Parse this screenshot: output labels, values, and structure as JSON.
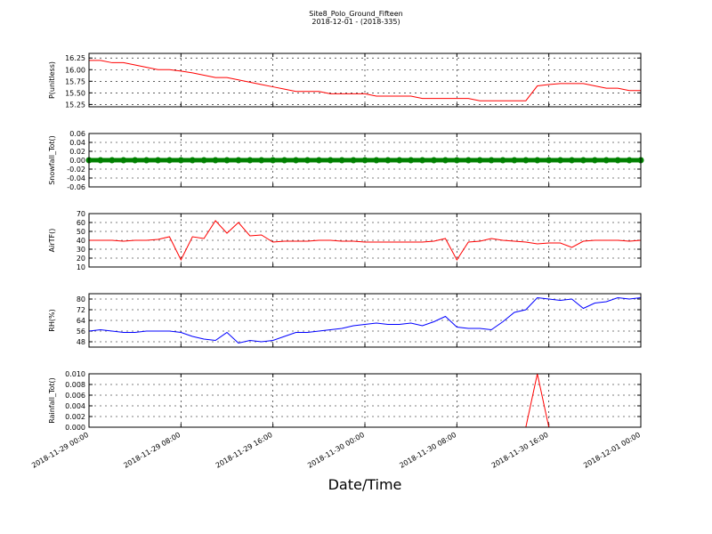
{
  "title": "Site8_Polo_Ground_Fifteen",
  "subtitle": "2018-12-01 - (2018-335)",
  "xlabel": "Date/Time",
  "chart_data": [
    {
      "type": "line",
      "ylabel": "P(unitless)",
      "color": "#ff0000",
      "grid": true,
      "xlim": [
        "2018-11-29 00:00",
        "2018-12-01 00:00"
      ],
      "xticks": [
        "2018-11-29 00:00",
        "2018-11-29 08:00",
        "2018-11-29 16:00",
        "2018-11-30 00:00",
        "2018-11-30 08:00",
        "2018-11-30 16:00",
        "2018-12-01 00:00"
      ],
      "ylim": [
        15.2,
        16.35
      ],
      "yticks": [
        16.25,
        {
          "value": 16.0,
          "label": "16.00"
        },
        15.75,
        {
          "value": 15.5,
          "label": "15.50"
        },
        15.25
      ],
      "x": [
        "2018-11-29 00:00",
        "2018-11-29 01:00",
        "2018-11-29 02:00",
        "2018-11-29 03:00",
        "2018-11-29 04:00",
        "2018-11-29 05:00",
        "2018-11-29 06:00",
        "2018-11-29 07:00",
        "2018-11-29 08:00",
        "2018-11-29 09:00",
        "2018-11-29 10:00",
        "2018-11-29 11:00",
        "2018-11-29 12:00",
        "2018-11-29 13:00",
        "2018-11-29 14:00",
        "2018-11-29 15:00",
        "2018-11-29 16:00",
        "2018-11-29 17:00",
        "2018-11-29 18:00",
        "2018-11-29 19:00",
        "2018-11-29 20:00",
        "2018-11-29 21:00",
        "2018-11-29 22:00",
        "2018-11-29 23:00",
        "2018-11-30 00:00",
        "2018-11-30 01:00",
        "2018-11-30 02:00",
        "2018-11-30 03:00",
        "2018-11-30 04:00",
        "2018-11-30 05:00",
        "2018-11-30 06:00",
        "2018-11-30 07:00",
        "2018-11-30 08:00",
        "2018-11-30 09:00",
        "2018-11-30 10:00",
        "2018-11-30 11:00",
        "2018-11-30 12:00",
        "2018-11-30 13:00",
        "2018-11-30 14:00",
        "2018-11-30 15:00",
        "2018-11-30 16:00",
        "2018-11-30 17:00",
        "2018-11-30 18:00",
        "2018-11-30 19:00",
        "2018-11-30 20:00",
        "2018-11-30 21:00",
        "2018-11-30 22:00",
        "2018-11-30 23:00",
        "2018-12-01 00:00"
      ],
      "values": [
        16.2,
        16.2,
        16.15,
        16.15,
        16.1,
        16.05,
        16.0,
        16.0,
        15.97,
        15.93,
        15.88,
        15.83,
        15.83,
        15.78,
        15.73,
        15.68,
        15.63,
        15.58,
        15.53,
        15.53,
        15.53,
        15.48,
        15.48,
        15.48,
        15.48,
        15.43,
        15.43,
        15.43,
        15.43,
        15.38,
        15.38,
        15.38,
        15.38,
        15.38,
        15.33,
        15.33,
        15.33,
        15.33,
        15.33,
        15.65,
        15.68,
        15.7,
        15.7,
        15.7,
        15.65,
        15.6,
        15.6,
        15.55,
        15.55
      ]
    },
    {
      "type": "scatter",
      "ylabel": "Snowfall_Tot()",
      "color": "#008000",
      "grid": true,
      "xlim": [
        "2018-11-29 00:00",
        "2018-12-01 00:00"
      ],
      "xticks": [
        "2018-11-29 00:00",
        "2018-11-29 08:00",
        "2018-11-29 16:00",
        "2018-11-30 00:00",
        "2018-11-30 08:00",
        "2018-11-30 16:00",
        "2018-12-01 00:00"
      ],
      "ylim": [
        -0.06,
        0.06
      ],
      "yticks": [
        0.06,
        0.04,
        0.02,
        {
          "value": 0,
          "label": "0.00"
        },
        -0.02,
        -0.04,
        -0.06
      ],
      "x": [
        "2018-11-29 00:00",
        "2018-11-29 01:00",
        "2018-11-29 02:00",
        "2018-11-29 03:00",
        "2018-11-29 04:00",
        "2018-11-29 05:00",
        "2018-11-29 06:00",
        "2018-11-29 07:00",
        "2018-11-29 08:00",
        "2018-11-29 09:00",
        "2018-11-29 10:00",
        "2018-11-29 11:00",
        "2018-11-29 12:00",
        "2018-11-29 13:00",
        "2018-11-29 14:00",
        "2018-11-29 15:00",
        "2018-11-29 16:00",
        "2018-11-29 17:00",
        "2018-11-29 18:00",
        "2018-11-29 19:00",
        "2018-11-29 20:00",
        "2018-11-29 21:00",
        "2018-11-29 22:00",
        "2018-11-29 23:00",
        "2018-11-30 00:00",
        "2018-11-30 01:00",
        "2018-11-30 02:00",
        "2018-11-30 03:00",
        "2018-11-30 04:00",
        "2018-11-30 05:00",
        "2018-11-30 06:00",
        "2018-11-30 07:00",
        "2018-11-30 08:00",
        "2018-11-30 09:00",
        "2018-11-30 10:00",
        "2018-11-30 11:00",
        "2018-11-30 12:00",
        "2018-11-30 13:00",
        "2018-11-30 14:00",
        "2018-11-30 15:00",
        "2018-11-30 16:00",
        "2018-11-30 17:00",
        "2018-11-30 18:00",
        "2018-11-30 19:00",
        "2018-11-30 20:00",
        "2018-11-30 21:00",
        "2018-11-30 22:00",
        "2018-11-30 23:00",
        "2018-12-01 00:00"
      ],
      "values": [
        0,
        0,
        0,
        0,
        0,
        0,
        0,
        0,
        0,
        0,
        0,
        0,
        0,
        0,
        0,
        0,
        0,
        0,
        0,
        0,
        0,
        0,
        0,
        0,
        0,
        0,
        0,
        0,
        0,
        0,
        0,
        0,
        0,
        0,
        0,
        0,
        0,
        0,
        0,
        0,
        0,
        0,
        0,
        0,
        0,
        0,
        0,
        0,
        0
      ]
    },
    {
      "type": "line",
      "ylabel": "AirTF()",
      "color": "#ff0000",
      "grid": true,
      "xlim": [
        "2018-11-29 00:00",
        "2018-12-01 00:00"
      ],
      "xticks": [
        "2018-11-29 00:00",
        "2018-11-29 08:00",
        "2018-11-29 16:00",
        "2018-11-30 00:00",
        "2018-11-30 08:00",
        "2018-11-30 16:00",
        "2018-12-01 00:00"
      ],
      "ylim": [
        10,
        70
      ],
      "yticks": [
        70,
        60,
        50,
        40,
        30,
        20,
        10
      ],
      "x": [
        "2018-11-29 00:00",
        "2018-11-29 01:00",
        "2018-11-29 02:00",
        "2018-11-29 03:00",
        "2018-11-29 04:00",
        "2018-11-29 05:00",
        "2018-11-29 06:00",
        "2018-11-29 07:00",
        "2018-11-29 08:00",
        "2018-11-29 09:00",
        "2018-11-29 10:00",
        "2018-11-29 11:00",
        "2018-11-29 12:00",
        "2018-11-29 13:00",
        "2018-11-29 14:00",
        "2018-11-29 15:00",
        "2018-11-29 16:00",
        "2018-11-29 17:00",
        "2018-11-29 18:00",
        "2018-11-29 19:00",
        "2018-11-29 20:00",
        "2018-11-29 21:00",
        "2018-11-29 22:00",
        "2018-11-29 23:00",
        "2018-11-30 00:00",
        "2018-11-30 01:00",
        "2018-11-30 02:00",
        "2018-11-30 03:00",
        "2018-11-30 04:00",
        "2018-11-30 05:00",
        "2018-11-30 06:00",
        "2018-11-30 07:00",
        "2018-11-30 08:00",
        "2018-11-30 09:00",
        "2018-11-30 10:00",
        "2018-11-30 11:00",
        "2018-11-30 12:00",
        "2018-11-30 13:00",
        "2018-11-30 14:00",
        "2018-11-30 15:00",
        "2018-11-30 16:00",
        "2018-11-30 17:00",
        "2018-11-30 18:00",
        "2018-11-30 19:00",
        "2018-11-30 20:00",
        "2018-11-30 21:00",
        "2018-11-30 22:00",
        "2018-11-30 23:00",
        "2018-12-01 00:00"
      ],
      "values": [
        40,
        40,
        40,
        39,
        40,
        40,
        41,
        44,
        18,
        44,
        42,
        62,
        48,
        60,
        45,
        46,
        38,
        39,
        39,
        39,
        40,
        40,
        39,
        39,
        38,
        38,
        38,
        38,
        38,
        38,
        39,
        42,
        18,
        38,
        39,
        42,
        40,
        39,
        38,
        36,
        37,
        37,
        32,
        39,
        40,
        40,
        40,
        39,
        40
      ]
    },
    {
      "type": "line",
      "ylabel": "RH(%)",
      "color": "#0000ff",
      "grid": true,
      "xlim": [
        "2018-11-29 00:00",
        "2018-12-01 00:00"
      ],
      "xticks": [
        "2018-11-29 00:00",
        "2018-11-29 08:00",
        "2018-11-29 16:00",
        "2018-11-30 00:00",
        "2018-11-30 08:00",
        "2018-11-30 16:00",
        "2018-12-01 00:00"
      ],
      "ylim": [
        44,
        84
      ],
      "yticks": [
        80,
        72,
        64,
        56,
        48
      ],
      "x": [
        "2018-11-29 00:00",
        "2018-11-29 01:00",
        "2018-11-29 02:00",
        "2018-11-29 03:00",
        "2018-11-29 04:00",
        "2018-11-29 05:00",
        "2018-11-29 06:00",
        "2018-11-29 07:00",
        "2018-11-29 08:00",
        "2018-11-29 09:00",
        "2018-11-29 10:00",
        "2018-11-29 11:00",
        "2018-11-29 12:00",
        "2018-11-29 13:00",
        "2018-11-29 14:00",
        "2018-11-29 15:00",
        "2018-11-29 16:00",
        "2018-11-29 17:00",
        "2018-11-29 18:00",
        "2018-11-29 19:00",
        "2018-11-29 20:00",
        "2018-11-29 21:00",
        "2018-11-29 22:00",
        "2018-11-29 23:00",
        "2018-11-30 00:00",
        "2018-11-30 01:00",
        "2018-11-30 02:00",
        "2018-11-30 03:00",
        "2018-11-30 04:00",
        "2018-11-30 05:00",
        "2018-11-30 06:00",
        "2018-11-30 07:00",
        "2018-11-30 08:00",
        "2018-11-30 09:00",
        "2018-11-30 10:00",
        "2018-11-30 11:00",
        "2018-11-30 12:00",
        "2018-11-30 13:00",
        "2018-11-30 14:00",
        "2018-11-30 15:00",
        "2018-11-30 16:00",
        "2018-11-30 17:00",
        "2018-11-30 18:00",
        "2018-11-30 19:00",
        "2018-11-30 20:00",
        "2018-11-30 21:00",
        "2018-11-30 22:00",
        "2018-11-30 23:00",
        "2018-12-01 00:00"
      ],
      "values": [
        56,
        57,
        56,
        55,
        55,
        56,
        56,
        56,
        55,
        52,
        50,
        49,
        55,
        47,
        49,
        48,
        49,
        52,
        55,
        55,
        56,
        57,
        58,
        60,
        61,
        62,
        61,
        61,
        62,
        60,
        63,
        67,
        59,
        58,
        58,
        57,
        63,
        70,
        72,
        81,
        80,
        79,
        80,
        73,
        77,
        78,
        81,
        80,
        81
      ]
    },
    {
      "type": "line",
      "ylabel": "Rainfall_Tot()",
      "color": "#ff0000",
      "grid": true,
      "xlim": [
        "2018-11-29 00:00",
        "2018-12-01 00:00"
      ],
      "xticks": [
        "2018-11-29 00:00",
        "2018-11-29 08:00",
        "2018-11-29 16:00",
        "2018-11-30 00:00",
        "2018-11-30 08:00",
        "2018-11-30 16:00",
        "2018-12-01 00:00"
      ],
      "ylim": [
        0,
        0.01
      ],
      "yticks": [
        {
          "value": 0.01,
          "label": "0.010"
        },
        {
          "value": 0.008,
          "label": "0.008"
        },
        {
          "value": 0.006,
          "label": "0.006"
        },
        {
          "value": 0.004,
          "label": "0.004"
        },
        {
          "value": 0.002,
          "label": "0.002"
        },
        {
          "value": 0,
          "label": "0.000"
        }
      ],
      "x": [
        "2018-11-29 00:00",
        "2018-11-29 01:00",
        "2018-11-29 02:00",
        "2018-11-29 03:00",
        "2018-11-29 04:00",
        "2018-11-29 05:00",
        "2018-11-29 06:00",
        "2018-11-29 07:00",
        "2018-11-29 08:00",
        "2018-11-29 09:00",
        "2018-11-29 10:00",
        "2018-11-29 11:00",
        "2018-11-29 12:00",
        "2018-11-29 13:00",
        "2018-11-29 14:00",
        "2018-11-29 15:00",
        "2018-11-29 16:00",
        "2018-11-29 17:00",
        "2018-11-29 18:00",
        "2018-11-29 19:00",
        "2018-11-29 20:00",
        "2018-11-29 21:00",
        "2018-11-29 22:00",
        "2018-11-29 23:00",
        "2018-11-30 00:00",
        "2018-11-30 01:00",
        "2018-11-30 02:00",
        "2018-11-30 03:00",
        "2018-11-30 04:00",
        "2018-11-30 05:00",
        "2018-11-30 06:00",
        "2018-11-30 07:00",
        "2018-11-30 08:00",
        "2018-11-30 09:00",
        "2018-11-30 10:00",
        "2018-11-30 11:00",
        "2018-11-30 12:00",
        "2018-11-30 13:00",
        "2018-11-30 14:00",
        "2018-11-30 15:00",
        "2018-11-30 16:00",
        "2018-11-30 17:00",
        "2018-11-30 18:00",
        "2018-11-30 19:00",
        "2018-11-30 20:00",
        "2018-11-30 21:00",
        "2018-11-30 22:00",
        "2018-11-30 23:00",
        "2018-12-01 00:00"
      ],
      "values": [
        0,
        0,
        0,
        0,
        0,
        0,
        0,
        0,
        0,
        0,
        0,
        0,
        0,
        0,
        0,
        0,
        0,
        0,
        0,
        0,
        0,
        0,
        0,
        0,
        0,
        0,
        0,
        0,
        0,
        0,
        0,
        0,
        0,
        0,
        0,
        0,
        0,
        0,
        0,
        0.01,
        0,
        0,
        0,
        0,
        0,
        0,
        0,
        0,
        0
      ]
    }
  ]
}
